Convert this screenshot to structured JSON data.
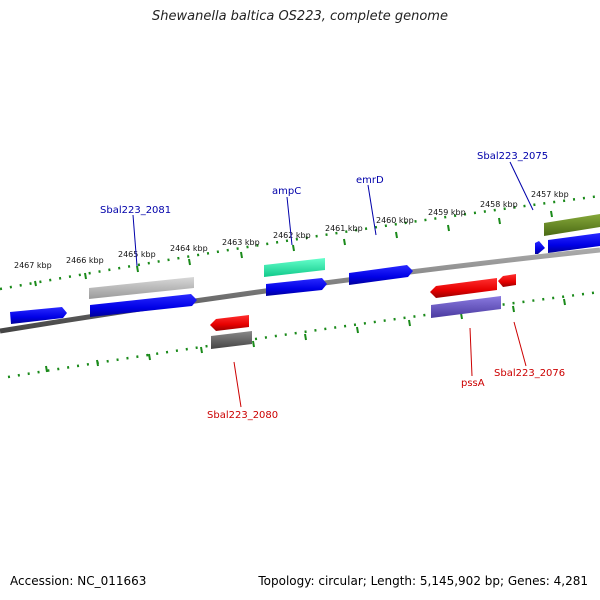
{
  "title": "Shewanella baltica OS223, complete genome",
  "footer": {
    "accession": "Accession: NC_011663",
    "summary": "Topology: circular; Length: 5,145,902 bp; Genes: 4,281"
  },
  "colors": {
    "forward_gene": "#0000ee",
    "reverse_gene": "#ee0000",
    "backbone": "#777777",
    "ticks": "#1a8a1a",
    "label_forward": "#0000aa",
    "label_reverse": "#cc0000"
  },
  "ruler": {
    "unit": "kbp",
    "ticks": [
      {
        "label": "2467 kbp"
      },
      {
        "label": "2466 kbp"
      },
      {
        "label": "2465 kbp"
      },
      {
        "label": "2464 kbp"
      },
      {
        "label": "2463 kbp"
      },
      {
        "label": "2462 kbp"
      },
      {
        "label": "2461 kbp"
      },
      {
        "label": "2460 kbp"
      },
      {
        "label": "2459 kbp"
      },
      {
        "label": "2458 kbp"
      },
      {
        "label": "2457 kbp"
      }
    ]
  },
  "gene_labels": [
    {
      "name": "Sbal223_2081",
      "strand": "forward"
    },
    {
      "name": "ampC",
      "strand": "forward"
    },
    {
      "name": "emrD",
      "strand": "forward"
    },
    {
      "name": "Sbal223_2075",
      "strand": "forward"
    },
    {
      "name": "Sbal223_2080",
      "strand": "reverse"
    },
    {
      "name": "pssA",
      "strand": "reverse"
    },
    {
      "name": "Sbal223_2076",
      "strand": "reverse"
    }
  ]
}
